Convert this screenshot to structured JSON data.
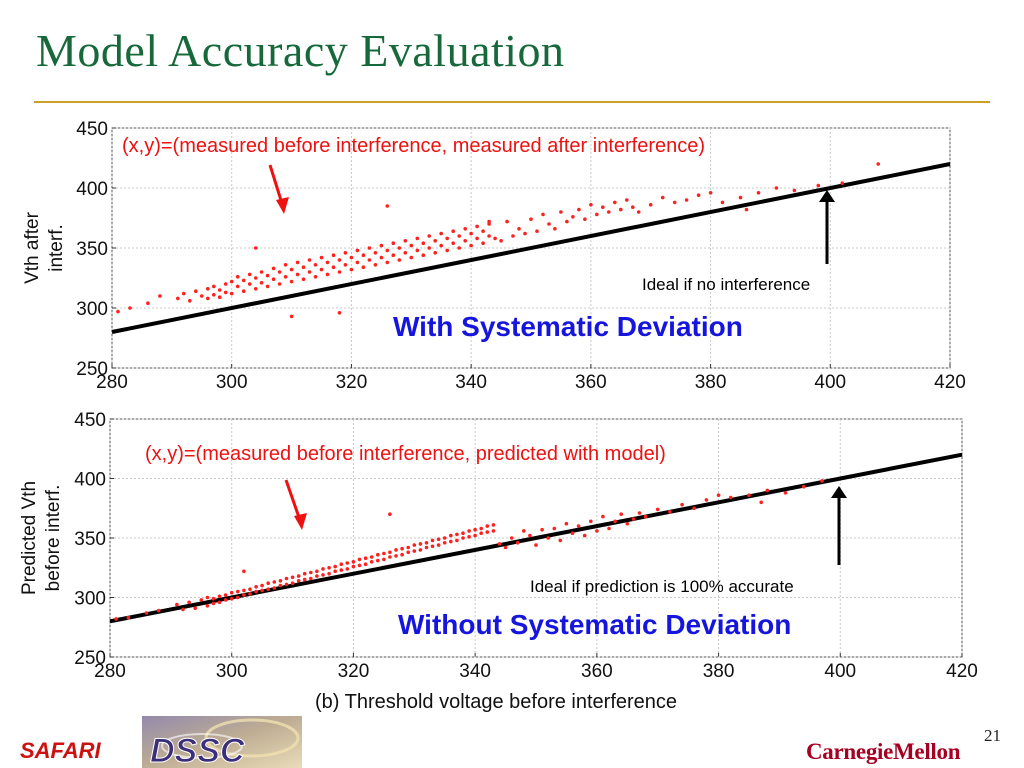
{
  "slide": {
    "title": "Model Accuracy Evaluation",
    "page_number": "21",
    "footer_left": "SAFARI",
    "footer_right": "CarnegieMellon",
    "footer_logo_text": "DSSC"
  },
  "colors": {
    "title": "#17683a",
    "rule": "#c9a227",
    "points": "#ff2020",
    "ideal_line": "#000000",
    "callout_red": "#ee1111",
    "callout_blue": "#1515dd"
  },
  "chart_data": [
    {
      "type": "scatter",
      "title": "",
      "xlabel": "",
      "ylabel": "Vth after interf.",
      "xlim": [
        280,
        420
      ],
      "ylim": [
        250,
        450
      ],
      "x_ticks": [
        280,
        300,
        320,
        340,
        360,
        380,
        400,
        420
      ],
      "y_ticks": [
        250,
        300,
        350,
        400,
        450
      ],
      "ideal_line": {
        "label": "Ideal if no interference",
        "x": [
          280,
          420
        ],
        "y": [
          280,
          420
        ]
      },
      "annotations": {
        "point_label": "(x,y)=(measured before interference, measured after interference)",
        "headline": "With Systematic Deviation"
      },
      "series": [
        {
          "x": [
            281,
            283,
            286,
            288,
            291,
            292,
            293,
            294,
            295,
            296,
            296,
            297,
            297,
            298,
            298,
            299,
            299,
            300,
            300,
            301,
            301,
            302,
            302,
            303,
            303,
            304,
            304,
            305,
            305,
            306,
            306,
            307,
            307,
            308,
            308,
            309,
            309,
            310,
            310,
            311,
            311,
            312,
            312,
            313,
            313,
            314,
            314,
            315,
            315,
            316,
            316,
            317,
            317,
            318,
            318,
            319,
            319,
            320,
            320,
            321,
            321,
            322,
            322,
            323,
            323,
            324,
            324,
            325,
            325,
            326,
            326,
            327,
            327,
            328,
            328,
            329,
            329,
            330,
            330,
            331,
            331,
            332,
            332,
            333,
            333,
            334,
            334,
            335,
            335,
            336,
            336,
            337,
            337,
            338,
            338,
            339,
            339,
            340,
            340,
            341,
            341,
            342,
            342,
            343,
            343,
            344,
            345,
            346,
            347,
            348,
            349,
            350,
            351,
            352,
            353,
            354,
            355,
            356,
            357,
            358,
            359,
            360,
            361,
            362,
            363,
            364,
            365,
            366,
            367,
            368,
            370,
            372,
            374,
            376,
            378,
            380,
            382,
            385,
            388,
            391,
            394,
            398,
            402,
            408,
            304,
            326,
            343,
            386,
            310,
            318
          ],
          "y": [
            297,
            300,
            304,
            310,
            308,
            312,
            306,
            314,
            310,
            316,
            308,
            318,
            311,
            315,
            309,
            320,
            313,
            322,
            312,
            318,
            326,
            314,
            323,
            320,
            328,
            316,
            325,
            321,
            330,
            318,
            327,
            324,
            333,
            320,
            330,
            326,
            336,
            322,
            332,
            328,
            338,
            324,
            334,
            330,
            340,
            326,
            336,
            332,
            342,
            328,
            338,
            334,
            344,
            330,
            340,
            336,
            346,
            332,
            342,
            338,
            348,
            334,
            344,
            340,
            350,
            336,
            346,
            342,
            352,
            338,
            348,
            344,
            354,
            340,
            350,
            346,
            356,
            342,
            352,
            348,
            358,
            344,
            354,
            350,
            360,
            346,
            356,
            352,
            362,
            348,
            358,
            354,
            364,
            350,
            360,
            356,
            366,
            352,
            362,
            358,
            368,
            354,
            364,
            360,
            370,
            358,
            356,
            372,
            360,
            366,
            362,
            374,
            364,
            378,
            370,
            366,
            380,
            372,
            376,
            382,
            374,
            386,
            378,
            384,
            380,
            388,
            382,
            390,
            384,
            380,
            386,
            392,
            388,
            390,
            394,
            396,
            388,
            392,
            396,
            400,
            398,
            402,
            404,
            420,
            350,
            385,
            372,
            382,
            293,
            296
          ]
        }
      ]
    },
    {
      "type": "scatter",
      "title": "",
      "xlabel": "(b) Threshold voltage before interference",
      "ylabel": "Predicted Vth before interf.",
      "xlim": [
        280,
        420
      ],
      "ylim": [
        250,
        450
      ],
      "x_ticks": [
        280,
        300,
        320,
        340,
        360,
        380,
        400,
        420
      ],
      "y_ticks": [
        250,
        300,
        350,
        400,
        450
      ],
      "ideal_line": {
        "label": "Ideal if prediction is 100% accurate",
        "x": [
          280,
          420
        ],
        "y": [
          280,
          420
        ]
      },
      "annotations": {
        "point_label": "(x,y)=(measured before interference, predicted with model)",
        "headline": "Without Systematic Deviation"
      },
      "series": [
        {
          "x": [
            281,
            283,
            286,
            288,
            291,
            292,
            293,
            294,
            295,
            296,
            296,
            297,
            297,
            298,
            298,
            299,
            299,
            300,
            300,
            301,
            301,
            302,
            302,
            303,
            303,
            304,
            304,
            305,
            305,
            306,
            306,
            307,
            307,
            308,
            308,
            309,
            309,
            310,
            310,
            311,
            311,
            312,
            312,
            313,
            313,
            314,
            314,
            315,
            315,
            316,
            316,
            317,
            317,
            318,
            318,
            319,
            319,
            320,
            320,
            321,
            321,
            322,
            322,
            323,
            323,
            324,
            324,
            325,
            325,
            326,
            326,
            327,
            327,
            328,
            328,
            329,
            329,
            330,
            330,
            331,
            331,
            332,
            332,
            333,
            333,
            334,
            334,
            335,
            335,
            336,
            336,
            337,
            337,
            338,
            338,
            339,
            339,
            340,
            340,
            341,
            341,
            342,
            342,
            343,
            343,
            344,
            345,
            346,
            347,
            348,
            349,
            350,
            351,
            352,
            353,
            354,
            355,
            356,
            357,
            358,
            359,
            360,
            361,
            362,
            363,
            364,
            365,
            366,
            367,
            368,
            370,
            372,
            374,
            376,
            378,
            380,
            382,
            385,
            388,
            391,
            394,
            397,
            326,
            302,
            387
          ],
          "y": [
            282,
            283,
            287,
            289,
            294,
            290,
            296,
            291,
            298,
            293,
            300,
            295,
            299,
            296,
            301,
            298,
            302,
            299,
            304,
            300,
            305,
            302,
            306,
            303,
            307,
            305,
            309,
            306,
            310,
            307,
            312,
            308,
            313,
            310,
            314,
            311,
            316,
            312,
            317,
            314,
            318,
            315,
            320,
            316,
            321,
            318,
            322,
            319,
            324,
            320,
            325,
            322,
            326,
            323,
            328,
            324,
            329,
            326,
            330,
            327,
            332,
            328,
            333,
            330,
            334,
            331,
            336,
            332,
            337,
            334,
            338,
            335,
            340,
            336,
            341,
            338,
            342,
            339,
            344,
            340,
            345,
            342,
            346,
            343,
            348,
            344,
            349,
            346,
            350,
            347,
            352,
            348,
            353,
            350,
            354,
            351,
            356,
            352,
            357,
            354,
            358,
            355,
            360,
            356,
            361,
            345,
            342,
            350,
            346,
            356,
            352,
            344,
            357,
            350,
            358,
            348,
            362,
            354,
            360,
            352,
            364,
            356,
            368,
            358,
            364,
            370,
            362,
            366,
            371,
            368,
            374,
            372,
            378,
            375,
            382,
            386,
            384,
            386,
            390,
            388,
            393,
            398,
            370,
            322,
            380
          ]
        }
      ]
    }
  ]
}
